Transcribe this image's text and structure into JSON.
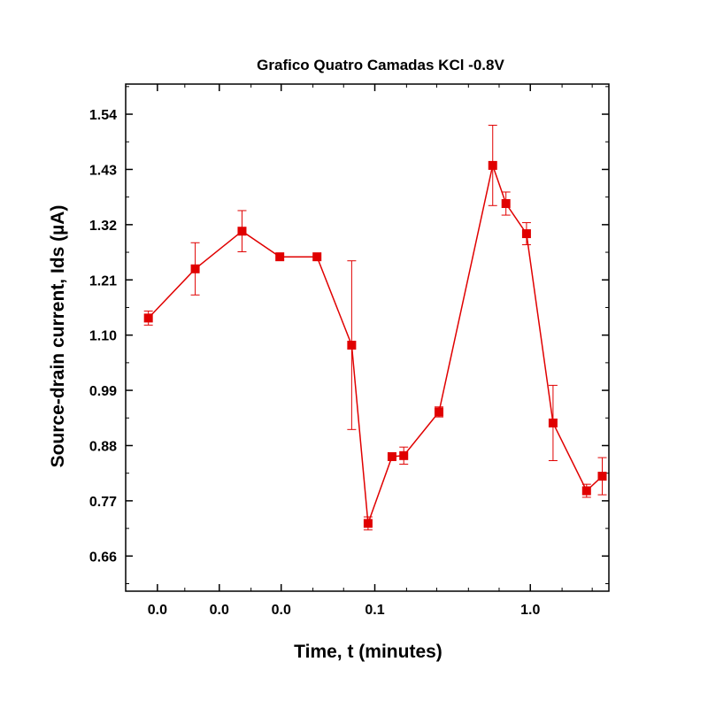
{
  "chart_data": {
    "type": "line",
    "title": "Grafico Quatro Camadas KCl -0.8V",
    "xlabel": "Time, t (minutes)",
    "ylabel": "Source-drain current, Ids (µA)",
    "x_scale": "log",
    "x_ticks": [
      "0.0",
      "0.0",
      "0.0",
      "0.1",
      "1.0"
    ],
    "y_ticks": [
      "0.66",
      "0.77",
      "0.88",
      "0.99",
      "1.10",
      "1.21",
      "1.32",
      "1.43",
      "1.54"
    ],
    "ylim": [
      0.59,
      1.6
    ],
    "grid": false,
    "colors": {
      "series": "#e00000",
      "axis": "#000000"
    },
    "series": [
      {
        "marker": "square",
        "points": [
          {
            "x": 0.0035,
            "y": 1.134,
            "err": 0.014
          },
          {
            "x": 0.007,
            "y": 1.232,
            "err": 0.052
          },
          {
            "x": 0.014,
            "y": 1.307,
            "err": 0.041
          },
          {
            "x": 0.0245,
            "y": 1.256,
            "err": 0.0
          },
          {
            "x": 0.0425,
            "y": 1.256,
            "err": 0.0
          },
          {
            "x": 0.071,
            "y": 1.08,
            "err": 0.168
          },
          {
            "x": 0.0905,
            "y": 0.725,
            "err": 0.013
          },
          {
            "x": 0.129,
            "y": 0.858,
            "err": 0.0
          },
          {
            "x": 0.1535,
            "y": 0.86,
            "err": 0.017
          },
          {
            "x": 0.2585,
            "y": 0.947,
            "err": 0.01
          },
          {
            "x": 0.573,
            "y": 1.438,
            "err": 0.08
          },
          {
            "x": 0.697,
            "y": 1.362,
            "err": 0.023
          },
          {
            "x": 0.945,
            "y": 1.302,
            "err": 0.022
          },
          {
            "x": 1.4,
            "y": 0.925,
            "err": 0.075
          },
          {
            "x": 2.3,
            "y": 0.79,
            "err": 0.013
          },
          {
            "x": 2.9,
            "y": 0.819,
            "err": 0.037
          }
        ]
      }
    ]
  }
}
